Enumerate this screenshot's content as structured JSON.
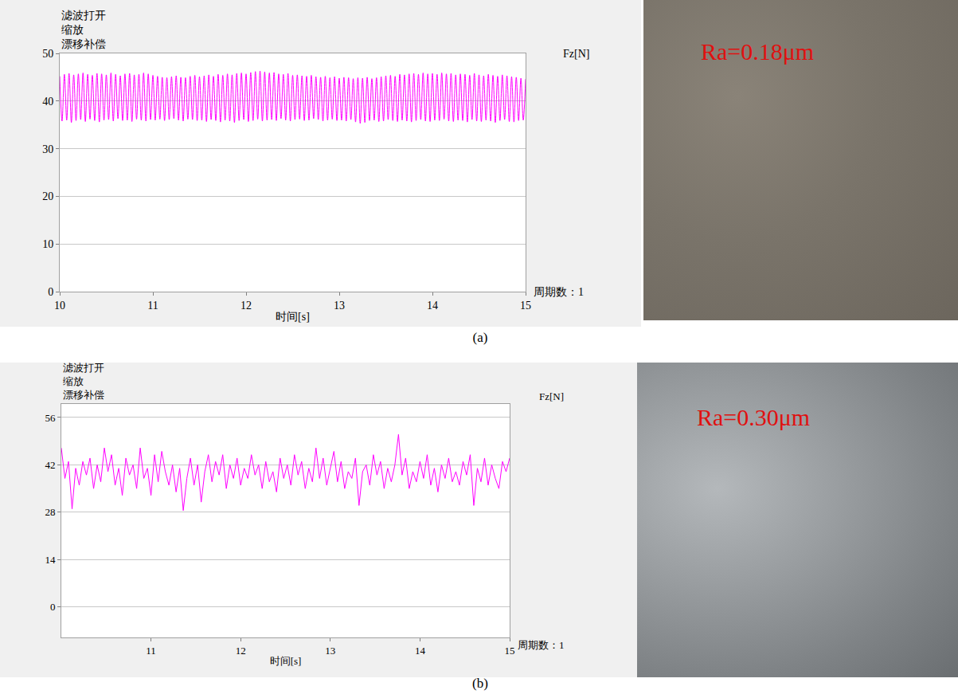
{
  "chart_data": [
    {
      "type": "line",
      "panel": "(a)",
      "annotations": [
        "滤波打开",
        "缩放",
        "漂移补偿"
      ],
      "footnote": "周期数：1",
      "x_label": "时间[s]",
      "y_label": "Fz[N]",
      "photo_label": "Ra=0.18μm",
      "xlim": [
        10,
        15
      ],
      "xticks": [
        10,
        11,
        12,
        13,
        14,
        15
      ],
      "ylim": [
        0,
        50
      ],
      "yticks": [
        0,
        10,
        20,
        30,
        40,
        50
      ],
      "grid": true,
      "series": [
        {
          "name": "Fz[N]",
          "color": "#ff00ff",
          "line_style": "smooth",
          "x": [
            10,
            10.025,
            10.05,
            10.075,
            10.1,
            10.125,
            10.15,
            10.175,
            10.2,
            10.225,
            10.25,
            10.275,
            10.3,
            10.325,
            10.35,
            10.375,
            10.4,
            10.425,
            10.45,
            10.475,
            10.5,
            10.525,
            10.55,
            10.575,
            10.6,
            10.625,
            10.65,
            10.675,
            10.7,
            10.725,
            10.75,
            10.775,
            10.8,
            10.825,
            10.85,
            10.875,
            10.9,
            10.925,
            10.95,
            10.975,
            11,
            11.025,
            11.05,
            11.075,
            11.1,
            11.125,
            11.15,
            11.175,
            11.2,
            11.225,
            11.25,
            11.275,
            11.3,
            11.325,
            11.35,
            11.375,
            11.4,
            11.425,
            11.45,
            11.475,
            11.5,
            11.525,
            11.55,
            11.575,
            11.6,
            11.625,
            11.65,
            11.675,
            11.7,
            11.725,
            11.75,
            11.775,
            11.8,
            11.825,
            11.85,
            11.875,
            11.9,
            11.925,
            11.95,
            11.975,
            12,
            12.025,
            12.05,
            12.075,
            12.1,
            12.125,
            12.15,
            12.175,
            12.2,
            12.225,
            12.25,
            12.275,
            12.3,
            12.325,
            12.35,
            12.375,
            12.4,
            12.425,
            12.45,
            12.475,
            12.5,
            12.525,
            12.55,
            12.575,
            12.6,
            12.625,
            12.65,
            12.675,
            12.7,
            12.725,
            12.75,
            12.775,
            12.8,
            12.825,
            12.85,
            12.875,
            12.9,
            12.925,
            12.95,
            12.975,
            13,
            13.025,
            13.05,
            13.075,
            13.1,
            13.125,
            13.15,
            13.175,
            13.2,
            13.225,
            13.25,
            13.275,
            13.3,
            13.325,
            13.35,
            13.375,
            13.4,
            13.425,
            13.45,
            13.475,
            13.5,
            13.525,
            13.55,
            13.575,
            13.6,
            13.625,
            13.65,
            13.675,
            13.7,
            13.725,
            13.75,
            13.775,
            13.8,
            13.825,
            13.85,
            13.875,
            13.9,
            13.925,
            13.95,
            13.975,
            14,
            14.025,
            14.05,
            14.075,
            14.1,
            14.125,
            14.15,
            14.175,
            14.2,
            14.225,
            14.25,
            14.275,
            14.3,
            14.325,
            14.35,
            14.375,
            14.4,
            14.425,
            14.45,
            14.475,
            14.5,
            14.525,
            14.55,
            14.575,
            14.6,
            14.625,
            14.65,
            14.675,
            14.7,
            14.725,
            14.75,
            14.775,
            14.8,
            14.825,
            14.85,
            14.875,
            14.9,
            14.925,
            14.95,
            14.975,
            15
          ],
          "values": [
            45.2,
            35.8,
            45.6,
            36.0,
            45.8,
            35.5,
            45.5,
            35.9,
            45.7,
            36.1,
            45.9,
            35.7,
            45.6,
            36.2,
            45.4,
            35.9,
            45.8,
            35.6,
            45.7,
            36.0,
            45.5,
            36.1,
            45.9,
            35.8,
            45.6,
            36.3,
            45.3,
            35.9,
            45.7,
            36.0,
            45.8,
            35.7,
            45.5,
            36.2,
            45.6,
            36.0,
            45.9,
            35.8,
            45.7,
            36.1,
            45.4,
            36.0,
            45.2,
            36.2,
            45.0,
            35.9,
            44.9,
            36.1,
            45.1,
            36.3,
            45.3,
            36.0,
            45.0,
            35.8,
            44.9,
            36.2,
            45.2,
            36.1,
            45.4,
            35.9,
            45.1,
            36.0,
            45.3,
            35.7,
            45.5,
            36.1,
            45.2,
            35.9,
            45.6,
            35.6,
            45.4,
            36.0,
            45.7,
            35.8,
            45.5,
            35.5,
            45.8,
            35.9,
            45.9,
            36.1,
            45.7,
            35.7,
            46.0,
            35.9,
            46.2,
            36.2,
            46.3,
            35.8,
            46.1,
            36.0,
            45.9,
            36.1,
            46.0,
            35.9,
            45.7,
            36.3,
            45.6,
            36.0,
            45.8,
            35.8,
            45.4,
            36.1,
            45.5,
            36.2,
            45.3,
            35.9,
            45.2,
            36.0,
            45.4,
            36.3,
            45.1,
            36.1,
            45.0,
            35.8,
            45.2,
            36.0,
            44.9,
            36.2,
            45.1,
            35.9,
            44.8,
            36.0,
            45.0,
            35.8,
            44.9,
            36.1,
            44.7,
            35.6,
            44.9,
            35.3,
            44.8,
            35.5,
            45.0,
            35.9,
            44.7,
            36.0,
            44.9,
            35.7,
            45.1,
            35.8,
            45.3,
            36.1,
            45.4,
            35.9,
            45.2,
            35.7,
            45.6,
            36.0,
            45.5,
            35.8,
            45.7,
            35.6,
            45.8,
            35.9,
            45.6,
            36.1,
            45.9,
            35.8,
            45.7,
            35.7,
            45.8,
            36.0,
            45.6,
            35.9,
            45.9,
            36.2,
            45.7,
            35.8,
            45.8,
            35.7,
            45.5,
            36.0,
            45.7,
            35.9,
            45.6,
            35.6,
            45.4,
            36.1,
            45.8,
            35.8,
            45.5,
            35.7,
            45.3,
            36.0,
            45.6,
            35.8,
            45.4,
            35.5,
            45.2,
            35.9,
            45.5,
            36.1,
            45.3,
            35.7,
            45.1,
            35.6,
            45.0,
            35.9,
            44.8,
            36.0,
            44.6
          ]
        }
      ]
    },
    {
      "type": "line",
      "panel": "(b)",
      "annotations": [
        "滤波打开",
        "缩放",
        "漂移补偿"
      ],
      "footnote": "周期数：1",
      "x_label": "时间[s]",
      "y_label": "Fz[N]",
      "photo_label": "Ra=0.30μm",
      "xlim": [
        10,
        15
      ],
      "xticks": [
        11,
        12,
        13,
        14,
        15
      ],
      "ylim": [
        -9,
        60
      ],
      "yticks": [
        0,
        14,
        28,
        42,
        56
      ],
      "grid": true,
      "series": [
        {
          "name": "Fz[N]",
          "color": "#ff00ff",
          "line_style": "solid",
          "x": [
            10,
            10.04,
            10.08,
            10.12,
            10.16,
            10.2,
            10.24,
            10.28,
            10.32,
            10.36,
            10.4,
            10.44,
            10.48,
            10.52,
            10.56,
            10.6,
            10.64,
            10.68,
            10.72,
            10.76,
            10.8,
            10.84,
            10.88,
            10.92,
            10.96,
            11,
            11.04,
            11.08,
            11.12,
            11.16,
            11.2,
            11.24,
            11.28,
            11.32,
            11.36,
            11.4,
            11.44,
            11.48,
            11.52,
            11.56,
            11.6,
            11.64,
            11.68,
            11.72,
            11.76,
            11.8,
            11.84,
            11.88,
            11.92,
            11.96,
            12,
            12.04,
            12.08,
            12.12,
            12.16,
            12.2,
            12.24,
            12.28,
            12.32,
            12.36,
            12.4,
            12.44,
            12.48,
            12.52,
            12.56,
            12.6,
            12.64,
            12.68,
            12.72,
            12.76,
            12.8,
            12.84,
            12.88,
            12.92,
            12.96,
            13,
            13.04,
            13.08,
            13.12,
            13.16,
            13.2,
            13.24,
            13.28,
            13.32,
            13.36,
            13.4,
            13.44,
            13.48,
            13.52,
            13.56,
            13.6,
            13.64,
            13.68,
            13.72,
            13.76,
            13.8,
            13.84,
            13.88,
            13.92,
            13.96,
            14,
            14.04,
            14.08,
            14.12,
            14.16,
            14.2,
            14.24,
            14.28,
            14.32,
            14.36,
            14.4,
            14.44,
            14.48,
            14.52,
            14.56,
            14.6,
            14.64,
            14.68,
            14.72,
            14.76,
            14.8,
            14.84,
            14.88,
            14.92,
            14.96,
            15
          ],
          "values": [
            47,
            38,
            43,
            29,
            41,
            36,
            43,
            39,
            44,
            35,
            42,
            37,
            47,
            40,
            45,
            36,
            41,
            33,
            44,
            39,
            42,
            35,
            47,
            38,
            41,
            33,
            45,
            37,
            46,
            40,
            36,
            42,
            34,
            41,
            28.5,
            38,
            44,
            36,
            42,
            31,
            40,
            45,
            37,
            43,
            39,
            45,
            35,
            42,
            38,
            44,
            36,
            41,
            38,
            45,
            39,
            42,
            35,
            43,
            37,
            40,
            34,
            44,
            38,
            42,
            36,
            45,
            39,
            43,
            35,
            41,
            37,
            47,
            38,
            44,
            36,
            41,
            46,
            37,
            43,
            35,
            40,
            38,
            44,
            30,
            40,
            42,
            36,
            45,
            39,
            43,
            35,
            41,
            37,
            42,
            51,
            39,
            44,
            35,
            40,
            37,
            43,
            38,
            45,
            36,
            41,
            34,
            42,
            38,
            44,
            37,
            40,
            36,
            43,
            39,
            45,
            30,
            41,
            37,
            44,
            36,
            42,
            38,
            35,
            43,
            40,
            44
          ]
        }
      ]
    }
  ]
}
